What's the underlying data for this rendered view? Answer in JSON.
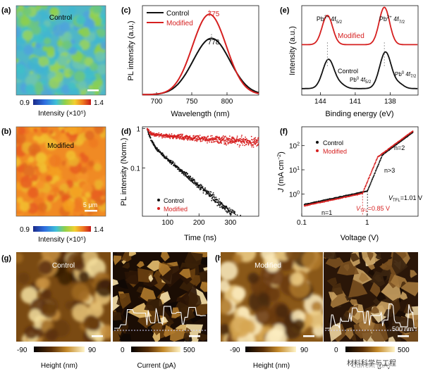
{
  "panel_labels": {
    "a": "(a)",
    "b": "(b)",
    "c": "(c)",
    "d": "(d)",
    "e": "(e)",
    "f": "(f)",
    "g": "(g)",
    "h": "(h)"
  },
  "colors": {
    "control": "#111111",
    "modified": "#d62020"
  },
  "pl_maps": {
    "control": {
      "title": "Control",
      "cbar_min": "0.9",
      "cbar_max": "1.4",
      "cbar_label": "Intensity (×10⁵)"
    },
    "modified": {
      "title": "Modified",
      "scale_label": "5 μm",
      "cbar_min": "0.9",
      "cbar_max": "1.4",
      "cbar_label": "Intensity (×10⁵)"
    }
  },
  "afm": {
    "control": {
      "title": "Control",
      "height_min": "-90",
      "height_max": "90",
      "height_label": "Height (nm)",
      "current_min": "0",
      "current_max": "500",
      "current_label": "Current (pA)"
    },
    "modified": {
      "title": "Modified",
      "scale_label": "500 nm",
      "height_min": "-90",
      "height_max": "90",
      "height_label": "Height (nm)",
      "current_min": "0",
      "current_max": "500",
      "current_label": "Current (pA)"
    }
  },
  "watermark": "材料科学与工程",
  "chart_data": [
    {
      "id": "c",
      "type": "line",
      "title": "",
      "xlabel": "Wavelength (nm)",
      "ylabel": "PL intensity (a.u.)",
      "xlim": [
        680,
        845
      ],
      "ylim": [
        0,
        1.08
      ],
      "xticks": [
        "700",
        "750",
        "800"
      ],
      "legend": [
        "Control",
        "Modified"
      ],
      "annotations": [
        "775",
        "778"
      ],
      "series": [
        {
          "name": "Control",
          "peak_nm": 778,
          "peak": 0.68,
          "width": 26
        },
        {
          "name": "Modified",
          "peak_nm": 775,
          "peak": 0.97,
          "width": 24
        }
      ]
    },
    {
      "id": "d",
      "type": "scatter",
      "title": "",
      "xlabel": "Time (ns)",
      "ylabel": "PL intensity (Norm.)",
      "xlim": [
        20,
        390
      ],
      "ylim": [
        0.006,
        1.1
      ],
      "yscale": "log",
      "xticks": [
        "100",
        "200",
        "300"
      ],
      "yticks": [
        "1",
        "0.1"
      ],
      "legend": [
        "Control",
        "Modified"
      ],
      "series": [
        {
          "name": "Control",
          "t0": 35,
          "a1": 0.55,
          "tau1": 10,
          "a2": 0.45,
          "tau2": 65
        },
        {
          "name": "Modified",
          "t0": 35,
          "a1": 0.3,
          "tau1": 8,
          "a2": 0.7,
          "tau2": 760
        }
      ]
    },
    {
      "id": "e",
      "type": "line",
      "title": "",
      "xlabel": "Binding energy (eV)",
      "ylabel": "Intensity (a.u.)",
      "xlim": [
        145.6,
        135.6
      ],
      "ylim": [
        0,
        1.1
      ],
      "xticks": [
        "144",
        "141",
        "138"
      ],
      "series_labels": [
        "Modified",
        "Control"
      ],
      "annotations": [
        "Pb²⁺ 4f5/2",
        "Pb²⁺ 4f7/2",
        "Pb⁰ 4f5/2",
        "Pb⁰ 4f7/2"
      ],
      "series": [
        {
          "name": "Modified",
          "offset": 0.62,
          "peaks": [
            {
              "x": 143.4,
              "h": 0.36,
              "w": 0.45
            },
            {
              "x": 138.5,
              "h": 0.46,
              "w": 0.45
            }
          ]
        },
        {
          "name": "Control",
          "offset": 0.08,
          "peaks": [
            {
              "x": 143.3,
              "h": 0.36,
              "w": 0.5
            },
            {
              "x": 138.4,
              "h": 0.45,
              "w": 0.5
            },
            {
              "x": 142.2,
              "h": 0.04,
              "w": 0.4
            },
            {
              "x": 137.2,
              "h": 0.05,
              "w": 0.4
            }
          ]
        }
      ]
    },
    {
      "id": "f",
      "type": "scatter",
      "title": "",
      "xlabel": "Voltage (V)",
      "ylabel": "J (mA cm⁻²)",
      "xlim": [
        0.1,
        6
      ],
      "ylim": [
        0.12,
        600
      ],
      "xscale": "log",
      "yscale": "log",
      "xticks": [
        "0.1",
        "1"
      ],
      "yticks": [
        "10²",
        "10¹",
        "10⁰"
      ],
      "legend": [
        "Control",
        "Modified"
      ],
      "annotations": [
        "n=1",
        "n>3",
        "n=2",
        "V_TFL=1.01 V",
        "V_TFL=0.85 V"
      ],
      "vtfl": {
        "control": 1.01,
        "modified": 0.85
      },
      "series": [
        {
          "name": "Control",
          "knee": 1.01,
          "j_at_knee": 1.1,
          "ohmic_j1": 1.2
        },
        {
          "name": "Modified",
          "knee": 0.85,
          "j_at_knee": 0.85,
          "ohmic_j1": 1.05
        }
      ]
    }
  ]
}
